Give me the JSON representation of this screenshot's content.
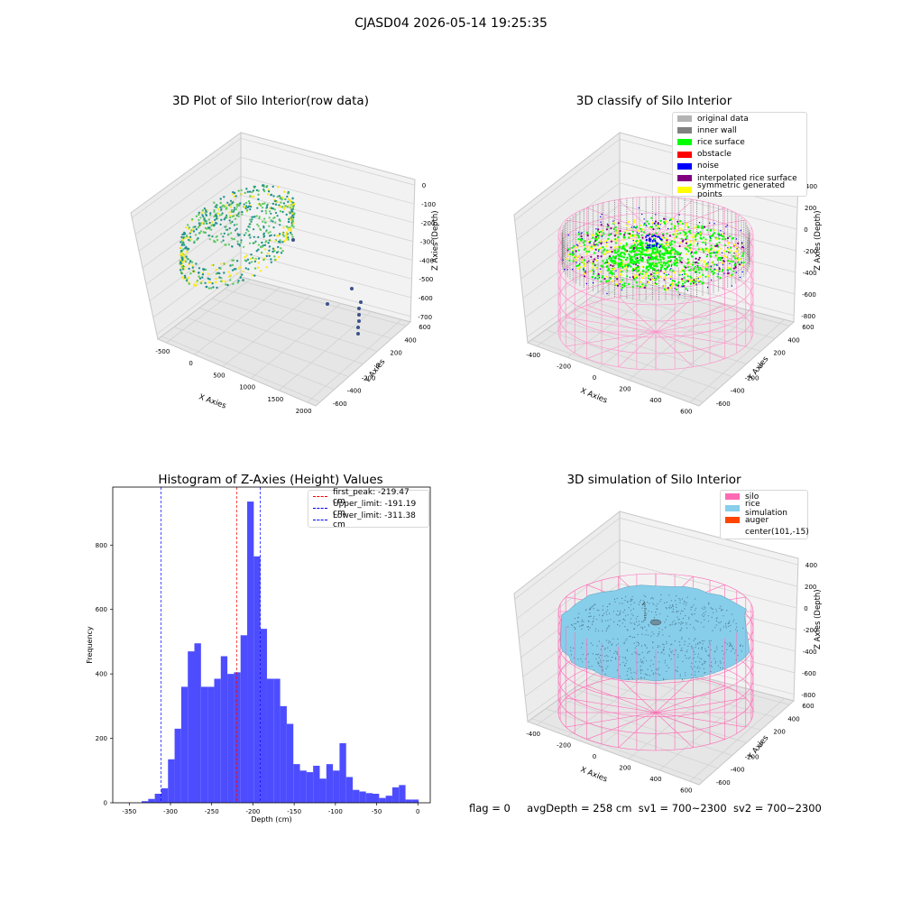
{
  "figure": {
    "suptitle": "CJASD04 2026-05-14 19:25:35",
    "footer": {
      "flag": "flag = 0",
      "avg_depth": "avgDepth = 258 cm",
      "sv1": "sv1 = 700~2300",
      "sv2": "sv2 = 700~2300"
    }
  },
  "chart_data": [
    {
      "type": "scatter",
      "title": "3D Plot of Silo Interior(row data)",
      "xlabel": "X Axies",
      "ylabel": "Y Axies",
      "zlabel": "Z Axies (Depth)",
      "x_ticks": [
        "-500",
        "0",
        "500",
        "1000",
        "1500",
        "2000"
      ],
      "y_ticks": [
        "-600",
        "-400",
        "-200",
        "0",
        "200",
        "400",
        "600"
      ],
      "z_ticks": [
        "0",
        "-100",
        "-200",
        "-300",
        "-400",
        "-500",
        "-600",
        "-700"
      ],
      "colormap": [
        "#440154",
        "#3b528b",
        "#21918c",
        "#5ec962",
        "#fde725"
      ]
    },
    {
      "type": "scatter",
      "title": "3D classify of Silo Interior",
      "xlabel": "X Axies",
      "ylabel": "Y Axies",
      "zlabel": "Z Axies (Depth)",
      "x_ticks": [
        "-400",
        "-200",
        "0",
        "200",
        "400",
        "600"
      ],
      "y_ticks": [
        "-600",
        "-400",
        "-200",
        "0",
        "200",
        "400",
        "600"
      ],
      "z_ticks": [
        "400",
        "200",
        "0",
        "-200",
        "-400",
        "-600",
        "-800"
      ],
      "legend": [
        {
          "label": "original data",
          "color": "#b3b3b3"
        },
        {
          "label": "inner wall",
          "color": "#808080"
        },
        {
          "label": "rice surface",
          "color": "#00ff00"
        },
        {
          "label": "obstacle",
          "color": "#ff0000"
        },
        {
          "label": "noise",
          "color": "#0000ff"
        },
        {
          "label": "interpolated rice surface",
          "color": "#800080"
        },
        {
          "label": "symmetric generated points",
          "color": "#ffff00"
        }
      ]
    },
    {
      "type": "bar",
      "title": "Histogram of Z-Axies (Height) Values",
      "xlabel": "Depth (cm)",
      "ylabel": "Frequency",
      "xlim": [
        -370,
        15
      ],
      "ylim": [
        0,
        980
      ],
      "x_ticks": [
        -350,
        -300,
        -250,
        -200,
        -150,
        -100,
        -50,
        0
      ],
      "y_ticks": [
        0,
        200,
        400,
        600,
        800
      ],
      "bar_color": "#4d4dff",
      "bin_edges": [
        -335,
        -327,
        -319,
        -311,
        -303,
        -295,
        -287,
        -279,
        -271,
        -263,
        -255,
        -247,
        -239,
        -231,
        -223,
        -215,
        -207,
        -199,
        -191,
        -183,
        -175,
        -167,
        -159,
        -151,
        -143,
        -135,
        -127,
        -119,
        -111,
        -103,
        -95,
        -87,
        -79,
        -71,
        -63,
        -55,
        -47,
        -39,
        -31,
        -23,
        -15,
        -7,
        1
      ],
      "values": [
        5,
        12,
        28,
        45,
        135,
        230,
        360,
        470,
        495,
        360,
        360,
        385,
        455,
        400,
        405,
        520,
        935,
        765,
        540,
        385,
        385,
        300,
        245,
        120,
        100,
        95,
        115,
        75,
        120,
        100,
        185,
        80,
        40,
        35,
        30,
        28,
        15,
        22,
        48,
        55,
        10,
        10
      ],
      "vlines": [
        {
          "label": "first_peak: -219.47 cm",
          "x": -219.47,
          "color": "#ff0000"
        },
        {
          "label": "Upper_limit: -191.19 cm",
          "x": -191.19,
          "color": "#0000ff"
        },
        {
          "label": "Lower_limit: -311.38 cm",
          "x": -311.38,
          "color": "#0000ff"
        }
      ]
    },
    {
      "type": "scatter",
      "title": "3D simulation of Silo Interior",
      "xlabel": "X Axies",
      "ylabel": "Y Axies",
      "zlabel": "Z Axies (Depth)",
      "x_ticks": [
        "-400",
        "-200",
        "0",
        "200",
        "400",
        "600"
      ],
      "y_ticks": [
        "-600",
        "-400",
        "-200",
        "0",
        "200",
        "400",
        "600"
      ],
      "z_ticks": [
        "400",
        "200",
        "0",
        "-200",
        "-400",
        "-600",
        "-800"
      ],
      "legend": [
        {
          "label": "silo",
          "color": "#ff69b4"
        },
        {
          "label": "rice simulation",
          "color": "#87ceeb"
        },
        {
          "label": "auger",
          "color": "#ff4500"
        },
        {
          "label": "center(101,-15)",
          "color": ""
        }
      ]
    }
  ]
}
